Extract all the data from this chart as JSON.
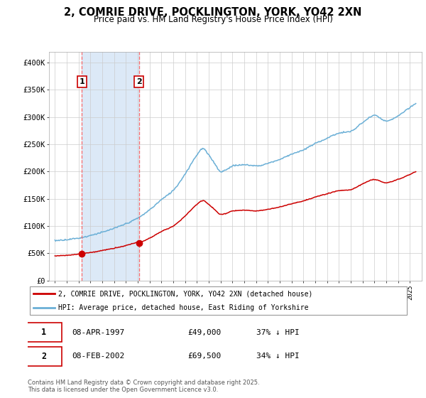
{
  "title": "2, COMRIE DRIVE, POCKLINGTON, YORK, YO42 2XN",
  "subtitle": "Price paid vs. HM Land Registry's House Price Index (HPI)",
  "ylim": [
    0,
    420000
  ],
  "yticks": [
    0,
    50000,
    100000,
    150000,
    200000,
    250000,
    300000,
    350000,
    400000
  ],
  "ytick_labels": [
    "£0",
    "£50K",
    "£100K",
    "£150K",
    "£200K",
    "£250K",
    "£300K",
    "£350K",
    "£400K"
  ],
  "sale1_date": 1997.27,
  "sale1_price": 49000,
  "sale1_label": "1",
  "sale2_date": 2002.1,
  "sale2_price": 69500,
  "sale2_label": "2",
  "shade_color": "#dce9f7",
  "line_color_hpi": "#6aafd6",
  "line_color_sales": "#cc0000",
  "marker_color": "#cc0000",
  "vline_color": "#ff5555",
  "legend_label_sales": "2, COMRIE DRIVE, POCKLINGTON, YORK, YO42 2XN (detached house)",
  "legend_label_hpi": "HPI: Average price, detached house, East Riding of Yorkshire",
  "table_row1": [
    "1",
    "08-APR-1997",
    "£49,000",
    "37% ↓ HPI"
  ],
  "table_row2": [
    "2",
    "08-FEB-2002",
    "£69,500",
    "34% ↓ HPI"
  ],
  "footer": "Contains HM Land Registry data © Crown copyright and database right 2025.\nThis data is licensed under the Open Government Licence v3.0.",
  "hpi_knots_x": [
    1995,
    1996,
    1997,
    1998,
    1999,
    2000,
    2001,
    2002,
    2003,
    2004,
    2005,
    2006,
    2007,
    2007.5,
    2008,
    2008.5,
    2009,
    2009.5,
    2010,
    2011,
    2012,
    2013,
    2014,
    2015,
    2016,
    2017,
    2018,
    2019,
    2020,
    2021,
    2022,
    2023,
    2024,
    2025,
    2025.5
  ],
  "hpi_knots_y": [
    72000,
    74000,
    77000,
    82000,
    88000,
    95000,
    103000,
    113000,
    128000,
    148000,
    165000,
    195000,
    230000,
    242000,
    230000,
    215000,
    200000,
    203000,
    210000,
    212000,
    210000,
    215000,
    222000,
    232000,
    240000,
    252000,
    262000,
    272000,
    275000,
    292000,
    305000,
    295000,
    305000,
    320000,
    328000
  ]
}
